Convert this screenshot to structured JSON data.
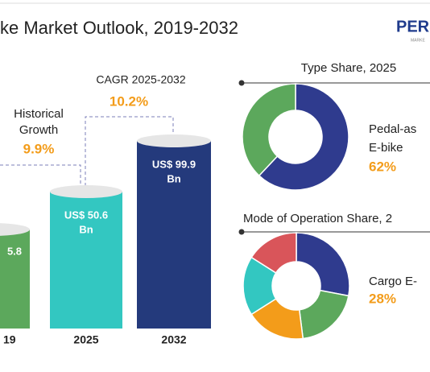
{
  "header": {
    "title": "ke Market Outlook, 2019-2032",
    "logo": "PERSi",
    "logo_sub": "MARKE"
  },
  "bars": [
    {
      "year": "19",
      "label": "5.8",
      "color": "#5ca85c"
    },
    {
      "year": "2025",
      "label_lines": [
        "US$ 50.6",
        "Bn"
      ],
      "color": "#33c7c1"
    },
    {
      "year": "2032",
      "label_lines": [
        "US$ 99.9",
        "Bn"
      ],
      "color": "#243a7c"
    }
  ],
  "historical": {
    "label_lines": [
      "Historical",
      "Growth"
    ],
    "value": "9.9%"
  },
  "cagr": {
    "label": "CAGR 2025-2032",
    "value": "10.2%"
  },
  "type_share": {
    "title": "Type Share, 2025",
    "values": [
      62,
      38
    ],
    "colors": [
      "#2f3b8e",
      "#5ca85c"
    ],
    "label_lines": [
      "Pedal-as",
      "E-bike"
    ],
    "value_label": "62%"
  },
  "mode_share": {
    "title": "Mode of Operation Share, 2",
    "values": [
      28,
      20,
      18,
      18,
      16
    ],
    "colors": [
      "#2f3b8e",
      "#5ca85c",
      "#f39c1a",
      "#33c7c1",
      "#d9555a"
    ],
    "label": "Cargo E-",
    "value_label": "28%"
  }
}
